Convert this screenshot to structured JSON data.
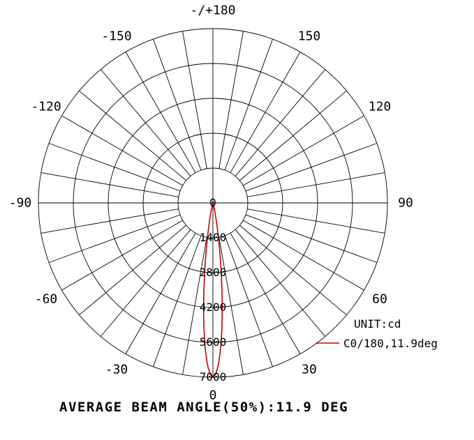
{
  "chart_data": {
    "type": "line",
    "subtype": "polar",
    "unit_label": "UNIT:cd",
    "footer": "AVERAGE BEAM ANGLE(50%):11.9 DEG",
    "beam_angle_label": "11.9 DEG",
    "grid_color": "#000000",
    "polar": {
      "r_max": 7000,
      "ring_values": [
        1400,
        2800,
        4200,
        5600,
        7000
      ],
      "radial_ticks": [
        0,
        1400,
        2800,
        4200,
        5600,
        7000
      ],
      "spoke_step_deg": 10,
      "angle_labels": [
        {
          "deg": 180,
          "label": "-/+180"
        },
        {
          "deg": 150,
          "label": "150"
        },
        {
          "deg": 120,
          "label": "120"
        },
        {
          "deg": 90,
          "label": "90"
        },
        {
          "deg": 60,
          "label": "60"
        },
        {
          "deg": 30,
          "label": "30"
        },
        {
          "deg": 0,
          "label": "0"
        },
        {
          "deg": -30,
          "label": "-30"
        },
        {
          "deg": -60,
          "label": "-60"
        },
        {
          "deg": -90,
          "label": "-90"
        },
        {
          "deg": -120,
          "label": "-120"
        },
        {
          "deg": -150,
          "label": "-150"
        }
      ]
    },
    "legend": {
      "entries": [
        {
          "label": "C0/180,11.9deg",
          "color": "#cc0000"
        }
      ]
    },
    "series": [
      {
        "name": "C0/180,11.9deg",
        "color": "#cc0000",
        "points_deg_cd": [
          [
            -20,
            3
          ],
          [
            -19,
            7
          ],
          [
            -18,
            13
          ],
          [
            -17,
            25
          ],
          [
            -16,
            47
          ],
          [
            -15,
            86
          ],
          [
            -14,
            151
          ],
          [
            -13,
            256
          ],
          [
            -12,
            417
          ],
          [
            -11,
            655
          ],
          [
            -10,
            989
          ],
          [
            -9,
            1434
          ],
          [
            -8,
            2000
          ],
          [
            -7,
            2683
          ],
          [
            -6,
            3460
          ],
          [
            -5,
            4291
          ],
          [
            -4,
            5118
          ],
          [
            -3,
            5869
          ],
          [
            -2,
            6473
          ],
          [
            -1,
            6864
          ],
          [
            0,
            7000
          ],
          [
            1,
            6864
          ],
          [
            2,
            6473
          ],
          [
            3,
            5869
          ],
          [
            4,
            5118
          ],
          [
            5,
            4291
          ],
          [
            6,
            3460
          ],
          [
            7,
            2683
          ],
          [
            8,
            2000
          ],
          [
            9,
            1434
          ],
          [
            10,
            989
          ],
          [
            11,
            655
          ],
          [
            12,
            417
          ],
          [
            13,
            256
          ],
          [
            14,
            151
          ],
          [
            15,
            86
          ],
          [
            16,
            47
          ],
          [
            17,
            25
          ],
          [
            18,
            13
          ],
          [
            19,
            7
          ],
          [
            20,
            3
          ]
        ]
      }
    ]
  }
}
